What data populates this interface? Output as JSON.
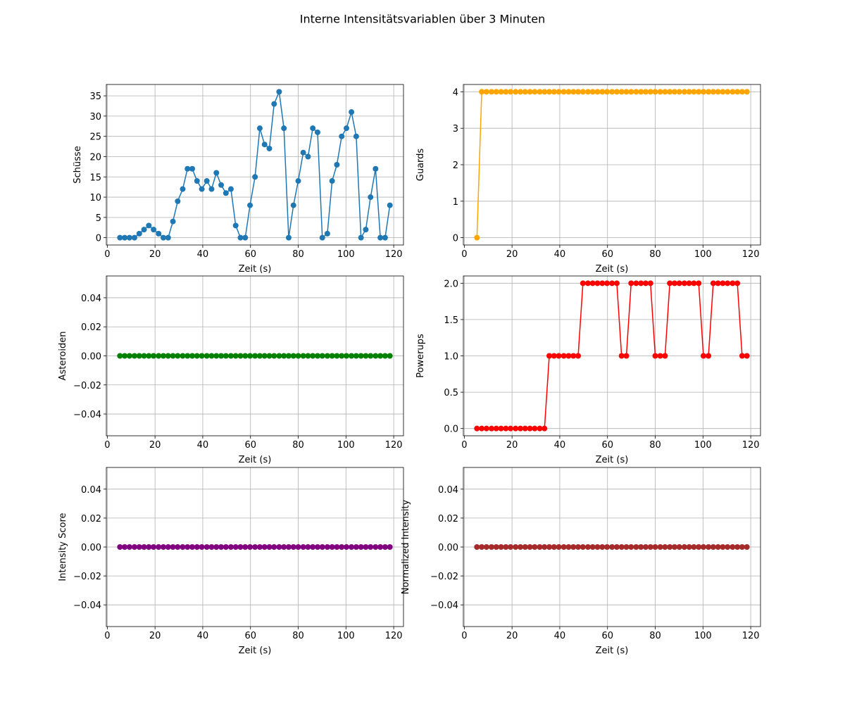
{
  "title": "Interne Intensitätsvariablen über 3 Minuten",
  "chart_data": [
    {
      "type": "line",
      "y_label": "Schüsse",
      "x_label": "Zeit (s)",
      "color": "#1f77b4",
      "grid": true,
      "x": [
        5.3,
        7.3,
        9.3,
        11.4,
        13.4,
        15.4,
        17.4,
        19.4,
        21.5,
        23.5,
        25.5,
        27.5,
        29.5,
        31.6,
        33.6,
        35.6,
        37.6,
        39.6,
        41.7,
        43.7,
        45.7,
        47.7,
        49.7,
        51.8,
        53.8,
        55.8,
        57.8,
        59.8,
        61.9,
        63.9,
        65.9,
        67.9,
        69.9,
        72.0,
        74.0,
        76.0,
        78.0,
        80.0,
        82.1,
        84.1,
        86.1,
        88.1,
        90.1,
        92.2,
        94.2,
        96.2,
        98.2,
        100.2,
        102.3,
        104.3,
        106.3,
        108.3,
        110.3,
        112.4,
        114.4,
        116.4,
        118.4
      ],
      "values": [
        0,
        0,
        0,
        0,
        1,
        2,
        3,
        2,
        1,
        0,
        0,
        4,
        9,
        12,
        17,
        17,
        14,
        12,
        14,
        12,
        16,
        13,
        11,
        12,
        3,
        0,
        0,
        8,
        15,
        27,
        23,
        22,
        33,
        36,
        27,
        0,
        8,
        14,
        21,
        20,
        27,
        26,
        0,
        1,
        14,
        18,
        25,
        27,
        31,
        25,
        0,
        2,
        10,
        17,
        0,
        0,
        8
      ],
      "xlim": [
        -0.4,
        124.1
      ],
      "xticks": [
        0,
        20,
        40,
        60,
        80,
        100,
        120
      ],
      "ylim": [
        -1.8,
        37.8
      ],
      "yticks": [
        0,
        5,
        10,
        15,
        20,
        25,
        30,
        35
      ]
    },
    {
      "type": "line",
      "y_label": "Guards",
      "x_label": "Zeit (s)",
      "color": "#ffa500",
      "grid": true,
      "x": [
        5.3,
        7.3,
        9.3,
        11.4,
        13.4,
        15.4,
        17.4,
        19.4,
        21.5,
        23.5,
        25.5,
        27.5,
        29.5,
        31.6,
        33.6,
        35.6,
        37.6,
        39.6,
        41.7,
        43.7,
        45.7,
        47.7,
        49.7,
        51.8,
        53.8,
        55.8,
        57.8,
        59.8,
        61.9,
        63.9,
        65.9,
        67.9,
        69.9,
        72.0,
        74.0,
        76.0,
        78.0,
        80.0,
        82.1,
        84.1,
        86.1,
        88.1,
        90.1,
        92.2,
        94.2,
        96.2,
        98.2,
        100.2,
        102.3,
        104.3,
        106.3,
        108.3,
        110.3,
        112.4,
        114.4,
        116.4,
        118.4
      ],
      "values": [
        0,
        4,
        4,
        4,
        4,
        4,
        4,
        4,
        4,
        4,
        4,
        4,
        4,
        4,
        4,
        4,
        4,
        4,
        4,
        4,
        4,
        4,
        4,
        4,
        4,
        4,
        4,
        4,
        4,
        4,
        4,
        4,
        4,
        4,
        4,
        4,
        4,
        4,
        4,
        4,
        4,
        4,
        4,
        4,
        4,
        4,
        4,
        4,
        4,
        4,
        4,
        4,
        4,
        4,
        4,
        4,
        4
      ],
      "xlim": [
        -0.4,
        124.1
      ],
      "xticks": [
        0,
        20,
        40,
        60,
        80,
        100,
        120
      ],
      "ylim": [
        -0.2,
        4.2
      ],
      "yticks": [
        0,
        1,
        2,
        3,
        4
      ]
    },
    {
      "type": "line",
      "y_label": "Asteroiden",
      "x_label": "Zeit (s)",
      "color": "#008000",
      "grid": true,
      "x": [
        5.3,
        7.3,
        9.3,
        11.4,
        13.4,
        15.4,
        17.4,
        19.4,
        21.5,
        23.5,
        25.5,
        27.5,
        29.5,
        31.6,
        33.6,
        35.6,
        37.6,
        39.6,
        41.7,
        43.7,
        45.7,
        47.7,
        49.7,
        51.8,
        53.8,
        55.8,
        57.8,
        59.8,
        61.9,
        63.9,
        65.9,
        67.9,
        69.9,
        72.0,
        74.0,
        76.0,
        78.0,
        80.0,
        82.1,
        84.1,
        86.1,
        88.1,
        90.1,
        92.2,
        94.2,
        96.2,
        98.2,
        100.2,
        102.3,
        104.3,
        106.3,
        108.3,
        110.3,
        112.4,
        114.4,
        116.4,
        118.4
      ],
      "values": [
        0,
        0,
        0,
        0,
        0,
        0,
        0,
        0,
        0,
        0,
        0,
        0,
        0,
        0,
        0,
        0,
        0,
        0,
        0,
        0,
        0,
        0,
        0,
        0,
        0,
        0,
        0,
        0,
        0,
        0,
        0,
        0,
        0,
        0,
        0,
        0,
        0,
        0,
        0,
        0,
        0,
        0,
        0,
        0,
        0,
        0,
        0,
        0,
        0,
        0,
        0,
        0,
        0,
        0,
        0,
        0,
        0
      ],
      "xlim": [
        -0.4,
        124.1
      ],
      "xticks": [
        0,
        20,
        40,
        60,
        80,
        100,
        120
      ],
      "ylim": [
        -0.055,
        0.055
      ],
      "yticks": [
        {
          "value": -0.04,
          "label": "−0.04"
        },
        {
          "value": -0.02,
          "label": "−0.02"
        },
        {
          "value": 0,
          "label": "0.00"
        },
        0.02,
        0.04
      ]
    },
    {
      "type": "line",
      "y_label": "Powerups",
      "x_label": "Zeit (s)",
      "color": "#ff0000",
      "grid": true,
      "x": [
        5.3,
        7.3,
        9.3,
        11.4,
        13.4,
        15.4,
        17.4,
        19.4,
        21.5,
        23.5,
        25.5,
        27.5,
        29.5,
        31.6,
        33.6,
        35.6,
        37.6,
        39.6,
        41.7,
        43.7,
        45.7,
        47.7,
        49.7,
        51.8,
        53.8,
        55.8,
        57.8,
        59.8,
        61.9,
        63.9,
        65.9,
        67.9,
        69.9,
        72.0,
        74.0,
        76.0,
        78.0,
        80.0,
        82.1,
        84.1,
        86.1,
        88.1,
        90.1,
        92.2,
        94.2,
        96.2,
        98.2,
        100.2,
        102.3,
        104.3,
        106.3,
        108.3,
        110.3,
        112.4,
        114.4,
        116.4,
        118.4
      ],
      "values": [
        0,
        0,
        0,
        0,
        0,
        0,
        0,
        0,
        0,
        0,
        0,
        0,
        0,
        0,
        0,
        1,
        1,
        1,
        1,
        1,
        1,
        1,
        2,
        2,
        2,
        2,
        2,
        2,
        2,
        2,
        1,
        1,
        2,
        2,
        2,
        2,
        2,
        1,
        1,
        1,
        2,
        2,
        2,
        2,
        2,
        2,
        2,
        1,
        1,
        2,
        2,
        2,
        2,
        2,
        2,
        1,
        1
      ],
      "xlim": [
        -0.4,
        124.1
      ],
      "xticks": [
        0,
        20,
        40,
        60,
        80,
        100,
        120
      ],
      "ylim": [
        -0.1,
        2.1
      ],
      "yticks": [
        {
          "value": 0,
          "label": "0.0"
        },
        0.5,
        {
          "value": 1,
          "label": "1.0"
        },
        1.5,
        {
          "value": 2,
          "label": "2.0"
        }
      ]
    },
    {
      "type": "line",
      "y_label": "Intensity Score",
      "x_label": "Zeit (s)",
      "color": "#800080",
      "grid": true,
      "x": [
        5.3,
        7.3,
        9.3,
        11.4,
        13.4,
        15.4,
        17.4,
        19.4,
        21.5,
        23.5,
        25.5,
        27.5,
        29.5,
        31.6,
        33.6,
        35.6,
        37.6,
        39.6,
        41.7,
        43.7,
        45.7,
        47.7,
        49.7,
        51.8,
        53.8,
        55.8,
        57.8,
        59.8,
        61.9,
        63.9,
        65.9,
        67.9,
        69.9,
        72.0,
        74.0,
        76.0,
        78.0,
        80.0,
        82.1,
        84.1,
        86.1,
        88.1,
        90.1,
        92.2,
        94.2,
        96.2,
        98.2,
        100.2,
        102.3,
        104.3,
        106.3,
        108.3,
        110.3,
        112.4,
        114.4,
        116.4,
        118.4
      ],
      "values": [
        0,
        0,
        0,
        0,
        0,
        0,
        0,
        0,
        0,
        0,
        0,
        0,
        0,
        0,
        0,
        0,
        0,
        0,
        0,
        0,
        0,
        0,
        0,
        0,
        0,
        0,
        0,
        0,
        0,
        0,
        0,
        0,
        0,
        0,
        0,
        0,
        0,
        0,
        0,
        0,
        0,
        0,
        0,
        0,
        0,
        0,
        0,
        0,
        0,
        0,
        0,
        0,
        0,
        0,
        0,
        0,
        0
      ],
      "xlim": [
        -0.4,
        124.1
      ],
      "xticks": [
        0,
        20,
        40,
        60,
        80,
        100,
        120
      ],
      "ylim": [
        -0.055,
        0.055
      ],
      "yticks": [
        {
          "value": -0.04,
          "label": "−0.04"
        },
        {
          "value": -0.02,
          "label": "−0.02"
        },
        {
          "value": 0,
          "label": "0.00"
        },
        0.02,
        0.04
      ]
    },
    {
      "type": "line",
      "y_label": "Normalized Intensity",
      "x_label": "Zeit (s)",
      "color": "#a52a2a",
      "grid": true,
      "x": [
        5.3,
        7.3,
        9.3,
        11.4,
        13.4,
        15.4,
        17.4,
        19.4,
        21.5,
        23.5,
        25.5,
        27.5,
        29.5,
        31.6,
        33.6,
        35.6,
        37.6,
        39.6,
        41.7,
        43.7,
        45.7,
        47.7,
        49.7,
        51.8,
        53.8,
        55.8,
        57.8,
        59.8,
        61.9,
        63.9,
        65.9,
        67.9,
        69.9,
        72.0,
        74.0,
        76.0,
        78.0,
        80.0,
        82.1,
        84.1,
        86.1,
        88.1,
        90.1,
        92.2,
        94.2,
        96.2,
        98.2,
        100.2,
        102.3,
        104.3,
        106.3,
        108.3,
        110.3,
        112.4,
        114.4,
        116.4,
        118.4
      ],
      "values": [
        0,
        0,
        0,
        0,
        0,
        0,
        0,
        0,
        0,
        0,
        0,
        0,
        0,
        0,
        0,
        0,
        0,
        0,
        0,
        0,
        0,
        0,
        0,
        0,
        0,
        0,
        0,
        0,
        0,
        0,
        0,
        0,
        0,
        0,
        0,
        0,
        0,
        0,
        0,
        0,
        0,
        0,
        0,
        0,
        0,
        0,
        0,
        0,
        0,
        0,
        0,
        0,
        0,
        0,
        0,
        0,
        0
      ],
      "xlim": [
        -0.4,
        124.1
      ],
      "xticks": [
        0,
        20,
        40,
        60,
        80,
        100,
        120
      ],
      "ylim": [
        -0.055,
        0.055
      ],
      "yticks": [
        {
          "value": -0.04,
          "label": "−0.04"
        },
        {
          "value": -0.02,
          "label": "−0.02"
        },
        {
          "value": 0,
          "label": "0.00"
        },
        0.02,
        0.04
      ]
    }
  ]
}
